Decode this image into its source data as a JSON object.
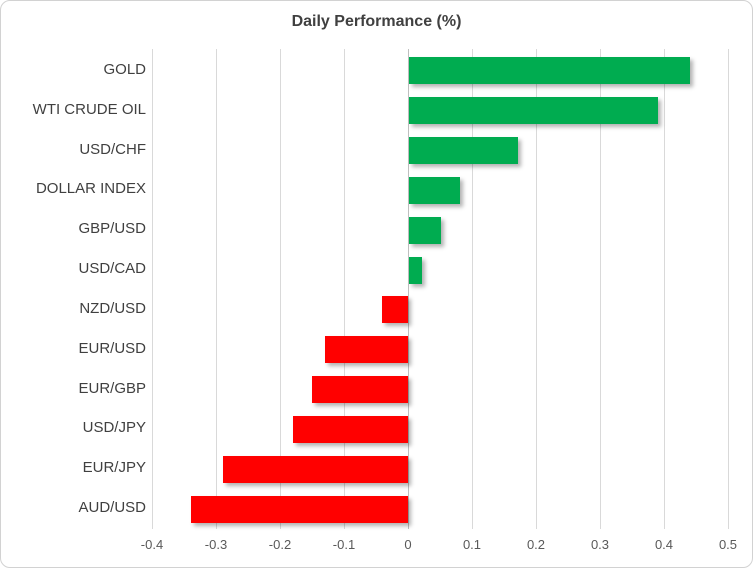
{
  "title": "Daily Performance (%)",
  "chart_data": {
    "type": "bar",
    "orientation": "horizontal",
    "title": "Daily Performance (%)",
    "categories": [
      "GOLD",
      "WTI CRUDE OIL",
      "USD/CHF",
      "DOLLAR INDEX",
      "GBP/USD",
      "USD/CAD",
      "NZD/USD",
      "EUR/USD",
      "EUR/GBP",
      "USD/JPY",
      "EUR/JPY",
      "AUD/USD"
    ],
    "values": [
      0.44,
      0.39,
      0.17,
      0.08,
      0.05,
      0.02,
      -0.04,
      -0.13,
      -0.15,
      -0.18,
      -0.29,
      -0.34
    ],
    "xlabel": "",
    "ylabel": "",
    "xlim": [
      -0.4,
      0.5
    ],
    "xticks": [
      -0.4,
      -0.3,
      -0.2,
      -0.1,
      0,
      0.1,
      0.2,
      0.3,
      0.4,
      0.5
    ],
    "xtick_labels": [
      "-0.4",
      "-0.3",
      "-0.2",
      "-0.1",
      "0",
      "0.1",
      "0.2",
      "0.3",
      "0.4",
      "0.5"
    ],
    "grid": true,
    "legend": false,
    "colors": {
      "positive": "#00ac50",
      "negative": "#ff0000",
      "gridline": "#d9d9d9",
      "axis_line": "#bfbfbf",
      "title_text": "#404040",
      "category_text": "#404040",
      "tick_text": "#595959"
    }
  }
}
